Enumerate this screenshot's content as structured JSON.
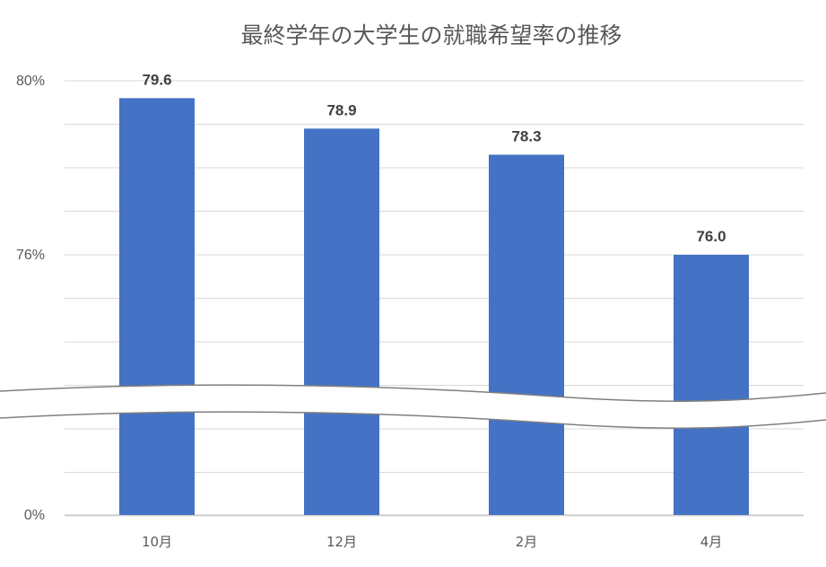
{
  "chart_data": {
    "type": "bar",
    "title": "最終学年の大学生の就職希望率の推移",
    "categories": [
      "10月",
      "12月",
      "2月",
      "4月"
    ],
    "values": [
      79.6,
      78.9,
      78.3,
      76.0
    ],
    "value_labels": [
      "79.6",
      "78.9",
      "78.3",
      "76.0"
    ],
    "y_ticks": [
      {
        "value": 80,
        "label": "80%"
      },
      {
        "value": 76,
        "label": "76%"
      },
      {
        "value": 0,
        "label": "0%"
      }
    ],
    "axis_break": true,
    "xlabel": "",
    "ylabel": "",
    "grid": true,
    "legend": "none",
    "colors": {
      "bar": "#4472C4",
      "grid": "#d9d9d9",
      "text": "#595959",
      "label": "#404040"
    }
  }
}
